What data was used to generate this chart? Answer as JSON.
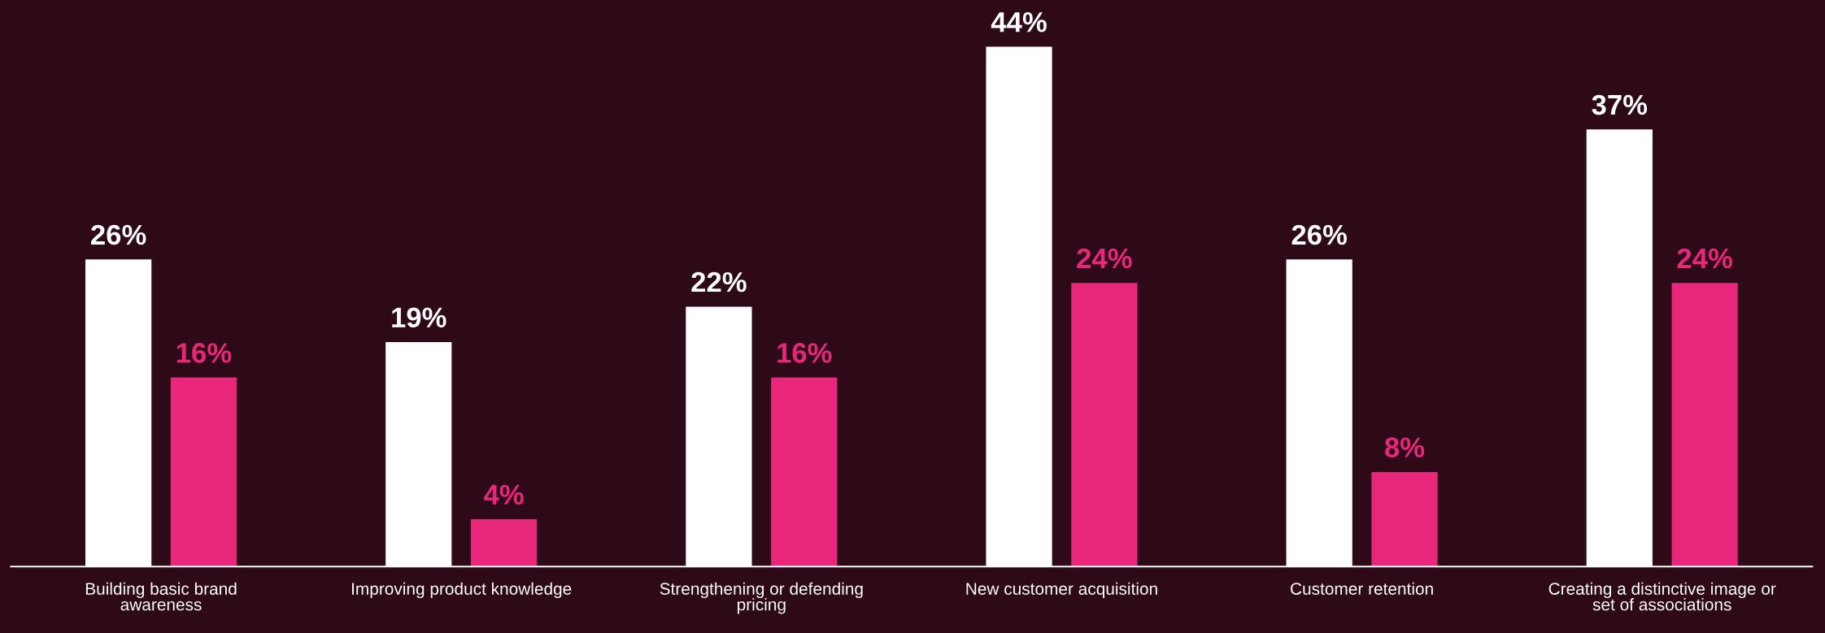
{
  "chart_data": {
    "type": "bar",
    "categories": [
      "Building basic brand\nawareness",
      "Improving product knowledge",
      "Strengthening or defending\npricing",
      "New customer acquisition",
      "Customer retention",
      "Creating a distinctive image or\nset of associations"
    ],
    "series": [
      {
        "color": "#ffffff",
        "values": [
          26,
          19,
          22,
          44,
          26,
          37
        ],
        "value_labels": [
          "26%",
          "19%",
          "22%",
          "44%",
          "26%",
          "37%"
        ]
      },
      {
        "color": "#e8277a",
        "values": [
          16,
          4,
          16,
          24,
          8,
          24
        ],
        "value_labels": [
          "16%",
          "4%",
          "16%",
          "24%",
          "8%",
          "24%"
        ]
      }
    ],
    "grid": false,
    "legend": false,
    "tick_labels": "x"
  }
}
